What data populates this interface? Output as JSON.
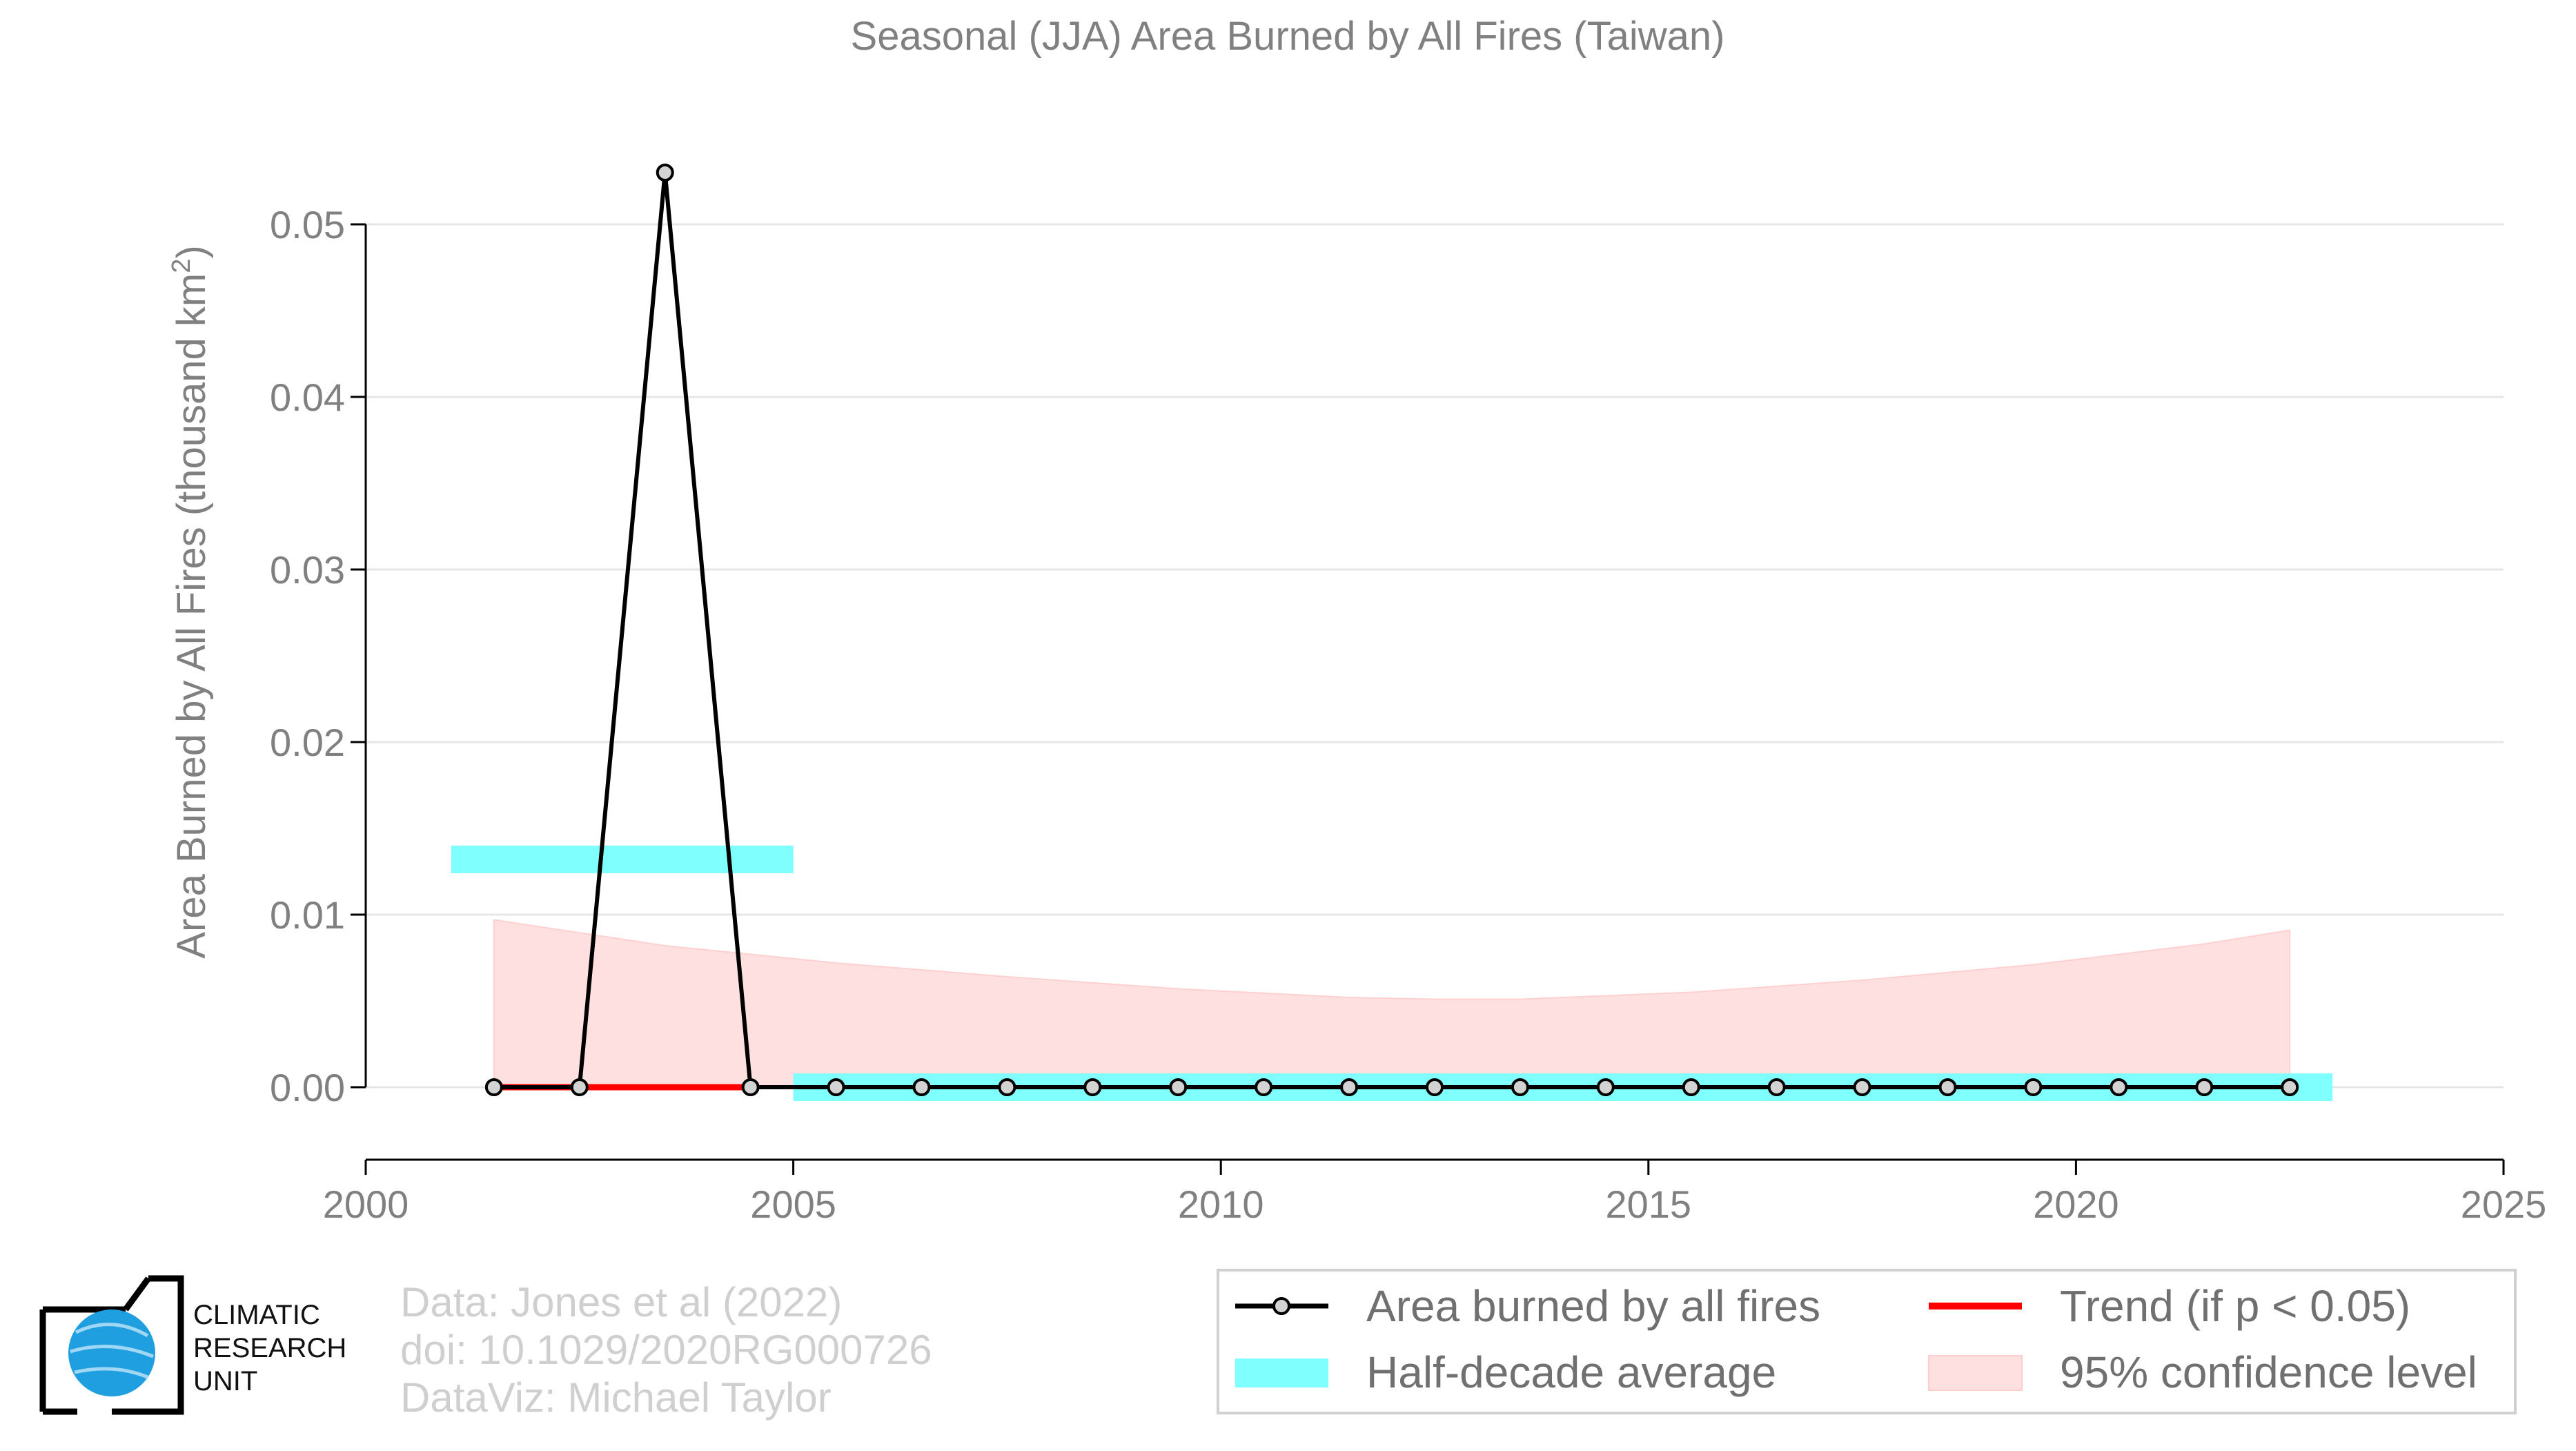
{
  "chart_data": {
    "type": "line",
    "title": "Seasonal (JJA) Area Burned by All Fires (Taiwan)",
    "ylabel": "Area Burned by All Fires (thousand km",
    "ylabel_sup": "2",
    "ylabel_close": ")",
    "xlabel": "",
    "xlim": [
      2000,
      2025
    ],
    "ylim": [
      -0.0042,
      0.057
    ],
    "xticks": [
      2000,
      2005,
      2010,
      2015,
      2020,
      2025
    ],
    "xtick_labels": [
      "2000",
      "2005",
      "2010",
      "2015",
      "2020",
      "2025"
    ],
    "yticks": [
      0.0,
      0.01,
      0.02,
      0.03,
      0.04,
      0.05
    ],
    "ytick_labels": [
      "0.00",
      "0.01",
      "0.02",
      "0.03",
      "0.04",
      "0.05"
    ],
    "grid": "horizontal",
    "series": {
      "name": "Area burned by all fires",
      "x": [
        2001.5,
        2002.5,
        2003.5,
        2004.5,
        2005.5,
        2006.5,
        2007.5,
        2008.5,
        2009.5,
        2010.5,
        2011.5,
        2012.5,
        2013.5,
        2014.5,
        2015.5,
        2016.5,
        2017.5,
        2018.5,
        2019.5,
        2020.5,
        2021.5,
        2022.5
      ],
      "y": [
        0.0,
        0.0,
        0.053,
        0.0,
        0.0,
        0.0,
        0.0,
        0.0,
        0.0,
        0.0,
        0.0,
        0.0,
        0.0,
        0.0,
        0.0,
        0.0,
        0.0,
        0.0,
        0.0,
        0.0,
        0.0,
        0.0
      ],
      "color": "#000000",
      "marker_fill": "#d3d3d3"
    },
    "half_decade_average": {
      "name": "Half-decade average",
      "color": "#80ffff",
      "segments": [
        {
          "x0": 2001.0,
          "x1": 2005.0,
          "y": 0.0132
        },
        {
          "x0": 2005.0,
          "x1": 2023.0,
          "y": 0.0
        }
      ]
    },
    "trend": {
      "name": "Trend (if p < 0.05)",
      "color": "#ff0000",
      "x0": 2001.5,
      "x1": 2004.5,
      "y": 0.0
    },
    "confidence_band": {
      "name": "95% confidence level",
      "color": "#ffe0e0",
      "x": [
        2001.5,
        2003.5,
        2005.5,
        2007.5,
        2009.5,
        2011.5,
        2012.5,
        2013.5,
        2015.5,
        2017.5,
        2019.5,
        2021.5,
        2022.5
      ],
      "upper": [
        0.0097,
        0.0082,
        0.0072,
        0.0064,
        0.0057,
        0.0052,
        0.0051,
        0.0051,
        0.0055,
        0.0062,
        0.0071,
        0.0083,
        0.0091
      ],
      "lower": [
        0.0,
        0.0,
        0.0,
        0.0,
        0.0,
        0.0,
        0.0,
        0.0,
        0.0,
        0.0,
        0.0,
        0.0,
        0.0
      ]
    },
    "legend": {
      "placement": "bottom-right",
      "entries": [
        "Area burned by all fires",
        "Trend (if p < 0.05)",
        "Half-decade average",
        "95% confidence level"
      ]
    }
  },
  "credits": {
    "line1": "Data: Jones et al (2022)",
    "line2": "doi: 10.1029/2020RG000726",
    "line3": "DataViz: Michael Taylor"
  },
  "logo": {
    "line1": "CLIMATIC",
    "line2": "RESEARCH",
    "line3": "UNIT"
  }
}
